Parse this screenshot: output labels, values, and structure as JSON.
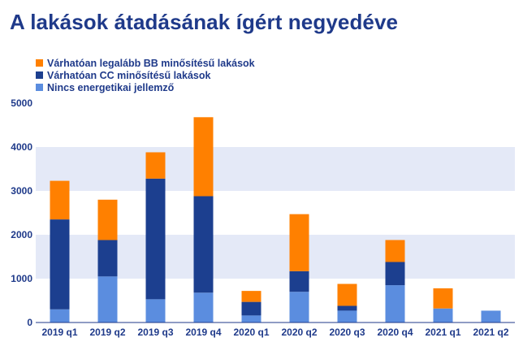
{
  "title": "A lakások átadásának ígért negyedéve",
  "colors": {
    "title": "#1f3a8a",
    "band": "#e4e9f7",
    "axis": "#1f3a8a"
  },
  "chart_data": {
    "type": "bar",
    "stacked": true,
    "categories": [
      "2019 q1",
      "2019 q2",
      "2019 q3",
      "2019 q4",
      "2020 q1",
      "2020 q2",
      "2020 q3",
      "2020 q4",
      "2021 q1",
      "2021 q2"
    ],
    "ylim": [
      0,
      5000
    ],
    "yticks": [
      0,
      1000,
      2000,
      3000,
      4000,
      5000
    ],
    "grid": "alternating horizontal bands",
    "legend_position": "top-left",
    "series": [
      {
        "name": "Nincs energetikai jellemző",
        "color": "#5b8ddf",
        "values": [
          300,
          1050,
          530,
          680,
          160,
          700,
          270,
          850,
          320,
          270
        ]
      },
      {
        "name": "Várhatóan CC minősítésű lakások",
        "color": "#1c3f8f",
        "values": [
          2050,
          830,
          2750,
          2200,
          310,
          470,
          110,
          530,
          0,
          0
        ]
      },
      {
        "name": "Várhatóan legalább BB minősítésű lakások",
        "color": "#ff8000",
        "values": [
          880,
          920,
          600,
          1800,
          250,
          1300,
          500,
          500,
          460,
          0
        ]
      }
    ]
  }
}
